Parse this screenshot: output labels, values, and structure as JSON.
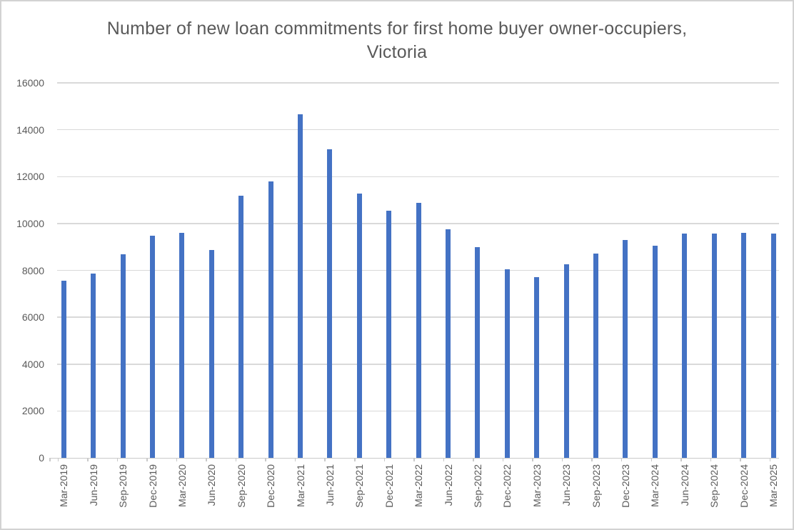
{
  "frame": {
    "background": "#ffffff",
    "border_color": "#d2d2d2"
  },
  "chart_data": {
    "type": "bar",
    "title": "Number of new loan commitments for first home buyer owner-occupiers, Victoria",
    "title_line1": "Number of new loan commitments for first home buyer owner-occupiers,",
    "title_line2": "Victoria",
    "categories": [
      "Mar-2019",
      "Jun-2019",
      "Sep-2019",
      "Dec-2019",
      "Mar-2020",
      "Jun-2020",
      "Sep-2020",
      "Dec-2020",
      "Mar-2021",
      "Jun-2021",
      "Sep-2021",
      "Dec-2021",
      "Mar-2022",
      "Jun-2022",
      "Sep-2022",
      "Dec-2022",
      "Mar-2023",
      "Jun-2023",
      "Sep-2023",
      "Dec-2023",
      "Mar-2024",
      "Jun-2024",
      "Sep-2024",
      "Dec-2024",
      "Mar-2025"
    ],
    "values": [
      7570,
      7870,
      8700,
      9480,
      9600,
      8870,
      11190,
      11780,
      14660,
      13180,
      11270,
      10550,
      10890,
      9740,
      8990,
      8040,
      7710,
      8270,
      8720,
      9300,
      9060,
      9560,
      9560,
      9600,
      9560
    ],
    "series": [
      {
        "name": "New loan commitments",
        "values": [
          7570,
          7870,
          8700,
          9480,
          9600,
          8870,
          11190,
          11780,
          14660,
          13180,
          11270,
          10550,
          10890,
          9740,
          8990,
          8040,
          7710,
          8270,
          8720,
          9300,
          9060,
          9560,
          9560,
          9600,
          9560
        ]
      }
    ],
    "xlabel": "",
    "ylabel": "",
    "ylim": [
      0,
      16000
    ],
    "ytick_step": 2000,
    "ytick_labels": [
      "0",
      "2000",
      "4000",
      "6000",
      "8000",
      "10000",
      "12000",
      "14000",
      "16000"
    ],
    "legend": "none",
    "grid": "horizontal",
    "bar_color": "#4472C4",
    "gridline_color": "#D9D9D9",
    "axis_line_color": "#C9C9C9",
    "tick_color": "#C9C9C9",
    "text_color": "#595959",
    "title_color": "#595959"
  }
}
